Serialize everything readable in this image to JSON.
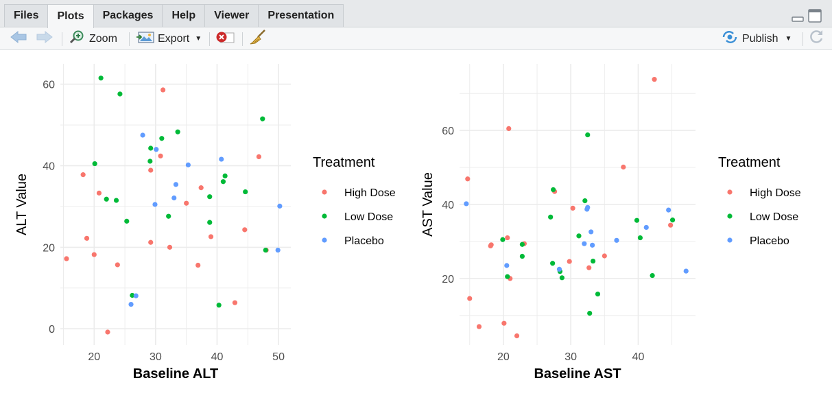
{
  "tabs": [
    "Files",
    "Plots",
    "Packages",
    "Help",
    "Viewer",
    "Presentation"
  ],
  "active_tab": "Plots",
  "toolbar": {
    "zoom_label": "Zoom",
    "export_label": "Export",
    "publish_label": "Publish"
  },
  "colors": {
    "high_dose": "#f8766d",
    "low_dose": "#00ba38",
    "placebo": "#619cff",
    "grid": "#ebebeb"
  },
  "chart_data": [
    {
      "type": "scatter",
      "title": "",
      "xlabel": "Baseline ALT",
      "ylabel": "ALT Value",
      "xlim": [
        14.5,
        52
      ],
      "ylim": [
        -4,
        65
      ],
      "xticks": [
        20,
        30,
        40,
        50
      ],
      "yticks": [
        0,
        20,
        40,
        60
      ],
      "legend_title": "Treatment",
      "legend_position": "right",
      "series": [
        {
          "name": "High Dose",
          "points": [
            [
              15.5,
              17.2
            ],
            [
              18.2,
              37.8
            ],
            [
              18.8,
              22.2
            ],
            [
              20.0,
              18.2
            ],
            [
              20.8,
              33.3
            ],
            [
              22.2,
              -0.8
            ],
            [
              23.8,
              15.7
            ],
            [
              29.2,
              38.9
            ],
            [
              29.2,
              21.2
            ],
            [
              30.8,
              42.4
            ],
            [
              31.2,
              58.6
            ],
            [
              32.3,
              20.0
            ],
            [
              35.0,
              30.8
            ],
            [
              36.9,
              15.6
            ],
            [
              37.4,
              34.6
            ],
            [
              39.0,
              22.6
            ],
            [
              42.9,
              6.4
            ],
            [
              44.5,
              24.3
            ],
            [
              46.8,
              42.2
            ],
            [
              48.0,
              19.3
            ]
          ]
        },
        {
          "name": "Low Dose",
          "points": [
            [
              20.1,
              40.5
            ],
            [
              21.1,
              61.5
            ],
            [
              22.0,
              31.8
            ],
            [
              23.6,
              31.5
            ],
            [
              24.2,
              57.6
            ],
            [
              25.3,
              26.4
            ],
            [
              26.2,
              8.2
            ],
            [
              29.1,
              41.1
            ],
            [
              29.2,
              44.3
            ],
            [
              31.0,
              46.7
            ],
            [
              32.1,
              27.6
            ],
            [
              33.6,
              48.3
            ],
            [
              38.8,
              26.1
            ],
            [
              38.8,
              32.4
            ],
            [
              40.3,
              5.8
            ],
            [
              41.0,
              36.1
            ],
            [
              41.3,
              37.5
            ],
            [
              44.6,
              33.6
            ],
            [
              47.4,
              51.5
            ],
            [
              47.9,
              19.3
            ]
          ]
        },
        {
          "name": "Placebo",
          "points": [
            [
              26.0,
              6.0
            ],
            [
              26.8,
              8.1
            ],
            [
              27.9,
              47.5
            ],
            [
              29.9,
              30.5
            ],
            [
              30.1,
              44.0
            ],
            [
              33.0,
              32.1
            ],
            [
              33.3,
              35.4
            ],
            [
              35.3,
              40.2
            ],
            [
              40.7,
              41.6
            ],
            [
              49.9,
              19.3
            ],
            [
              50.2,
              30.1
            ]
          ]
        }
      ]
    },
    {
      "type": "scatter",
      "title": "",
      "xlabel": "Baseline AST",
      "ylabel": "AST Value",
      "xlim": [
        13.5,
        48.5
      ],
      "ylim": [
        2,
        78
      ],
      "xticks": [
        20,
        30,
        40
      ],
      "yticks": [
        20,
        40,
        60
      ],
      "legend_title": "Treatment",
      "legend_position": "right",
      "series": [
        {
          "name": "High Dose",
          "points": [
            [
              14.7,
              46.9
            ],
            [
              15.0,
              14.6
            ],
            [
              16.4,
              7.0
            ],
            [
              18.1,
              28.8
            ],
            [
              18.2,
              29.1
            ],
            [
              20.1,
              7.9
            ],
            [
              20.6,
              31.0
            ],
            [
              20.8,
              60.5
            ],
            [
              21.0,
              20.0
            ],
            [
              22.0,
              4.5
            ],
            [
              23.1,
              29.4
            ],
            [
              27.6,
              43.5
            ],
            [
              29.8,
              24.6
            ],
            [
              30.3,
              39.0
            ],
            [
              32.7,
              22.9
            ],
            [
              35.0,
              26.1
            ],
            [
              37.8,
              50.1
            ],
            [
              42.4,
              73.8
            ],
            [
              44.8,
              34.4
            ]
          ]
        },
        {
          "name": "Low Dose",
          "points": [
            [
              19.9,
              30.5
            ],
            [
              20.6,
              20.5
            ],
            [
              22.8,
              29.2
            ],
            [
              22.8,
              26.0
            ],
            [
              27.0,
              36.6
            ],
            [
              27.3,
              24.1
            ],
            [
              27.4,
              44.0
            ],
            [
              28.4,
              21.9
            ],
            [
              28.7,
              20.2
            ],
            [
              31.2,
              31.5
            ],
            [
              32.1,
              41.0
            ],
            [
              32.5,
              58.8
            ],
            [
              32.8,
              10.6
            ],
            [
              33.3,
              24.7
            ],
            [
              34.0,
              15.8
            ],
            [
              39.8,
              35.7
            ],
            [
              40.3,
              31.0
            ],
            [
              42.1,
              20.8
            ],
            [
              45.1,
              35.8
            ]
          ]
        },
        {
          "name": "Placebo",
          "points": [
            [
              14.5,
              40.2
            ],
            [
              20.5,
              23.5
            ],
            [
              28.3,
              22.5
            ],
            [
              32.0,
              29.4
            ],
            [
              32.4,
              38.7
            ],
            [
              32.5,
              39.2
            ],
            [
              33.0,
              32.6
            ],
            [
              33.2,
              29.0
            ],
            [
              36.8,
              30.3
            ],
            [
              41.2,
              33.8
            ],
            [
              44.5,
              38.5
            ],
            [
              47.1,
              22.0
            ]
          ]
        }
      ]
    }
  ]
}
